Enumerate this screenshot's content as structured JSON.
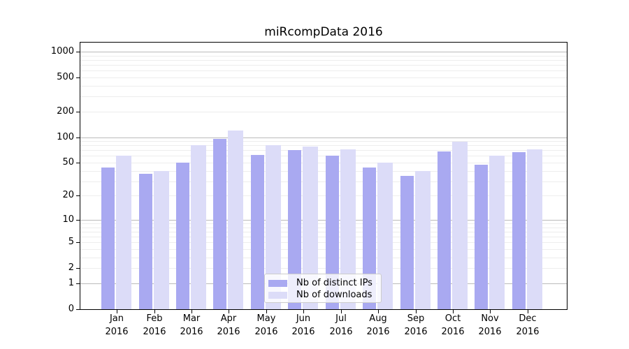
{
  "chart_data": {
    "type": "bar",
    "title": "miRcompData 2016",
    "y_scale": "log1p",
    "grid": true,
    "ylim": [
      0,
      1280
    ],
    "y_ticks": [
      0,
      1,
      2,
      5,
      10,
      20,
      50,
      100,
      200,
      500,
      1000
    ],
    "categories": [
      "Jan",
      "Feb",
      "Mar",
      "Apr",
      "May",
      "Jun",
      "Jul",
      "Aug",
      "Sep",
      "Oct",
      "Nov",
      "Dec"
    ],
    "category_year": "2016",
    "series": [
      {
        "name": "Nb of distinct IPs",
        "color": "#a9a9f1",
        "values": [
          44,
          37,
          50,
          96,
          62,
          71,
          61,
          44,
          35,
          68,
          47,
          67
        ]
      },
      {
        "name": "Nb of downloads",
        "color": "#dcdcf8",
        "values": [
          60,
          40,
          80,
          120,
          81,
          78,
          72,
          50,
          40,
          88,
          60,
          72
        ]
      }
    ],
    "legend": {
      "position": "lower center",
      "entries": [
        "Nb of distinct IPs",
        "Nb of downloads"
      ]
    }
  },
  "colors": {
    "axis": "#000000",
    "major_grid": "#bababa",
    "minor_grid": "#ededed",
    "background": "#ffffff"
  }
}
